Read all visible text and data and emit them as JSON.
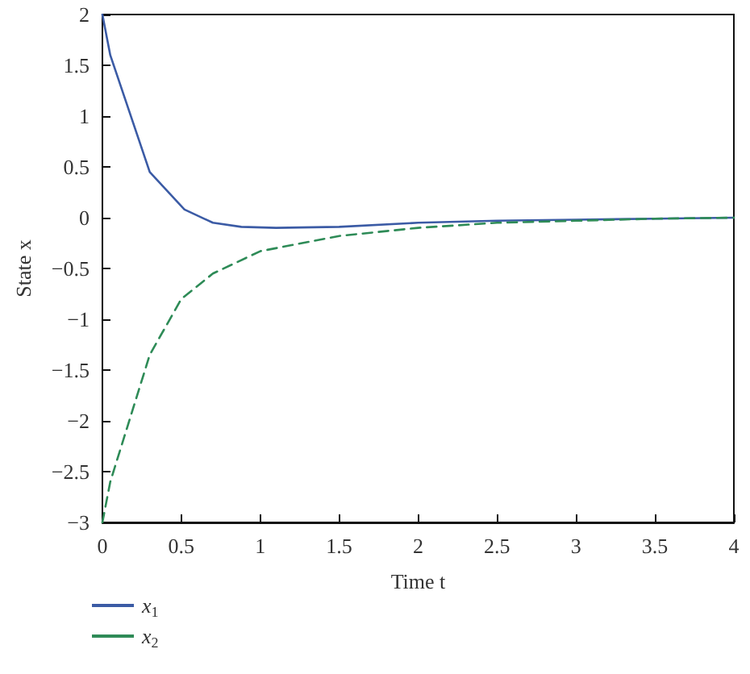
{
  "chart_data": {
    "type": "line",
    "xlabel": "Time t",
    "ylabel": "State x",
    "series": [
      {
        "name": "x$_{1}$",
        "color": "#3b5ba5",
        "line_style": "solid",
        "x": [
          0,
          0.05,
          0.3,
          0.52,
          0.7,
          0.88,
          1.1,
          1.5,
          2,
          2.5,
          3,
          3.5,
          4
        ],
        "values": [
          2,
          1.6,
          0.45,
          0.08,
          -0.05,
          -0.09,
          -0.1,
          -0.09,
          -0.05,
          -0.03,
          -0.02,
          -0.01,
          0
        ]
      },
      {
        "name": "x$_{2}$",
        "color": "#2e8b57",
        "line_style": "dashed",
        "x": [
          0,
          0.05,
          0.3,
          0.5,
          0.7,
          1,
          1.5,
          2,
          2.5,
          3,
          3.5,
          4
        ],
        "values": [
          -3,
          -2.6,
          -1.35,
          -0.8,
          -0.55,
          -0.33,
          -0.18,
          -0.1,
          -0.05,
          -0.03,
          -0.01,
          0
        ]
      }
    ],
    "xlim": [
      0,
      4
    ],
    "xticks": [
      0,
      0.5,
      1,
      1.5,
      2,
      2.5,
      3,
      3.5,
      4
    ],
    "ylim": [
      -3,
      2
    ],
    "yticks": [
      {
        "value": -3,
        "label": "−3"
      },
      {
        "value": -2.5,
        "label": "−2.5"
      },
      {
        "value": -2,
        "label": "−2"
      },
      {
        "value": -1.5,
        "label": "−1.5"
      },
      {
        "value": -1,
        "label": "−1"
      },
      {
        "value": -0.5,
        "label": "−0.5"
      },
      0,
      0.5,
      1,
      1.5,
      2
    ],
    "marker": "none",
    "grid": false,
    "legend": "bottom left"
  }
}
